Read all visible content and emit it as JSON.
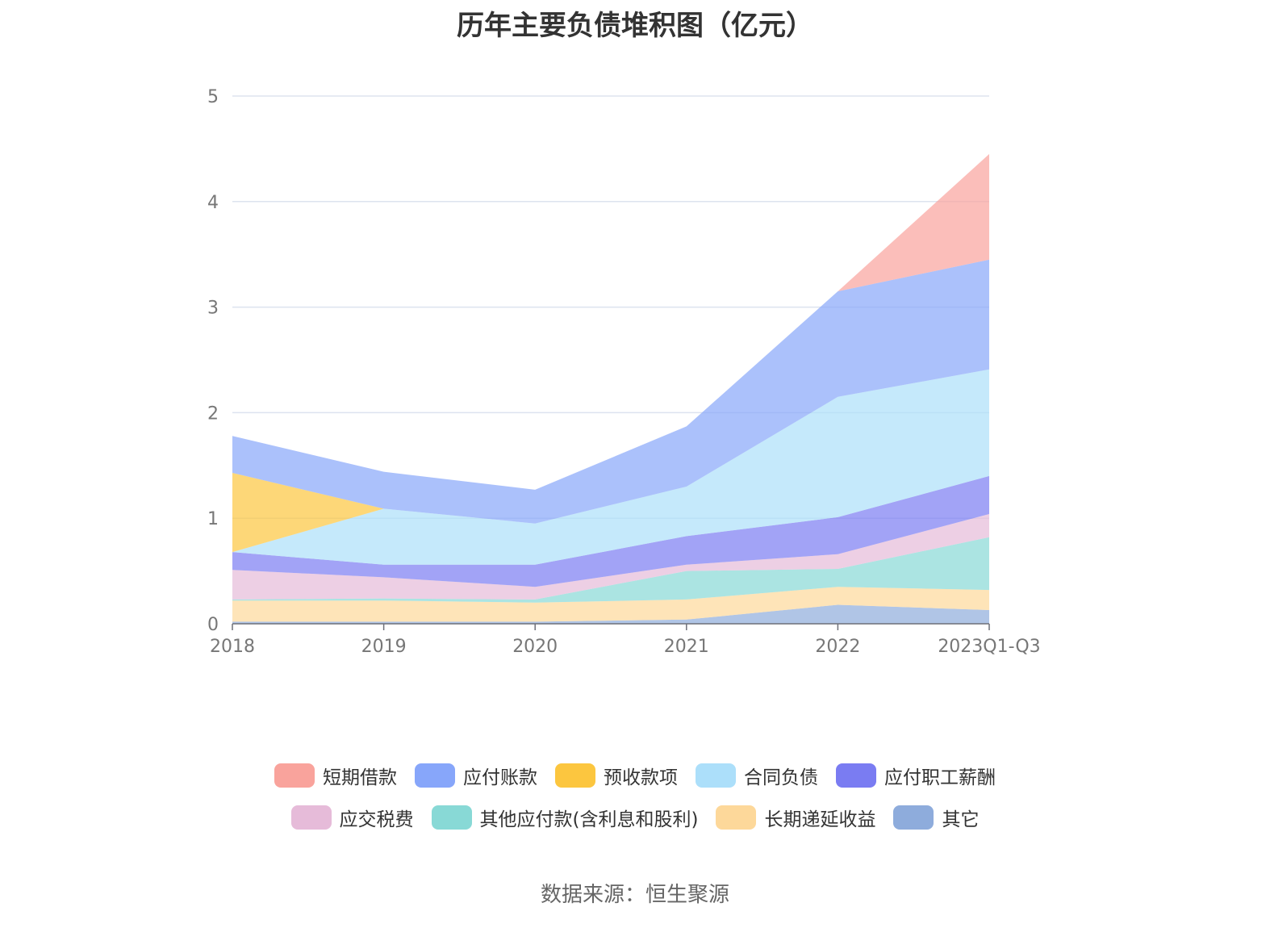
{
  "chart_data": {
    "type": "area",
    "stacked": true,
    "title": "历年主要负债堆积图（亿元）",
    "categories": [
      "2018",
      "2019",
      "2020",
      "2021",
      "2022",
      "2023Q1-Q3"
    ],
    "ylim": [
      0,
      5
    ],
    "yticks": [
      0,
      1,
      2,
      3,
      4,
      5
    ],
    "grid": true,
    "legend_position": "bottom",
    "series": [
      {
        "name": "其它",
        "color": "#8eacdc",
        "values": [
          0.02,
          0.02,
          0.02,
          0.04,
          0.18,
          0.13
        ]
      },
      {
        "name": "长期递延收益",
        "color": "#fdd89a",
        "values": [
          0.2,
          0.2,
          0.18,
          0.19,
          0.17,
          0.19
        ]
      },
      {
        "name": "其他应付款(含利息和股利)",
        "color": "#88d9d6",
        "values": [
          0.01,
          0.02,
          0.03,
          0.27,
          0.17,
          0.5
        ]
      },
      {
        "name": "应交税费",
        "color": "#e6bbd9",
        "values": [
          0.28,
          0.2,
          0.12,
          0.06,
          0.14,
          0.22
        ]
      },
      {
        "name": "应付职工薪酬",
        "color": "#7a7cf2",
        "values": [
          0.17,
          0.12,
          0.21,
          0.27,
          0.35,
          0.36
        ]
      },
      {
        "name": "合同负债",
        "color": "#acdffa",
        "values": [
          0.0,
          0.53,
          0.39,
          0.47,
          1.14,
          1.01
        ]
      },
      {
        "name": "预收款项",
        "color": "#fcc63f",
        "values": [
          0.75,
          0.0,
          0.0,
          0.0,
          0.0,
          0.0
        ]
      },
      {
        "name": "应付账款",
        "color": "#87a6fa",
        "values": [
          0.35,
          0.35,
          0.32,
          0.57,
          1.0,
          1.04
        ]
      },
      {
        "name": "短期借款",
        "color": "#f9a39c",
        "values": [
          0.0,
          0.0,
          0.0,
          0.0,
          0.0,
          1.0
        ]
      }
    ]
  },
  "legend": {
    "row1": [
      {
        "label": "短期借款",
        "color": "#f9a39c"
      },
      {
        "label": "应付账款",
        "color": "#87a6fa"
      },
      {
        "label": "预收款项",
        "color": "#fcc63f"
      },
      {
        "label": "合同负债",
        "color": "#acdffa"
      },
      {
        "label": "应付职工薪酬",
        "color": "#7a7cf2"
      }
    ],
    "row2": [
      {
        "label": "应交税费",
        "color": "#e6bbd9"
      },
      {
        "label": "其他应付款(含利息和股利)",
        "color": "#88d9d6"
      },
      {
        "label": "长期递延收益",
        "color": "#fdd89a"
      },
      {
        "label": "其它",
        "color": "#8eacdc"
      }
    ]
  },
  "source": "数据来源：恒生聚源"
}
